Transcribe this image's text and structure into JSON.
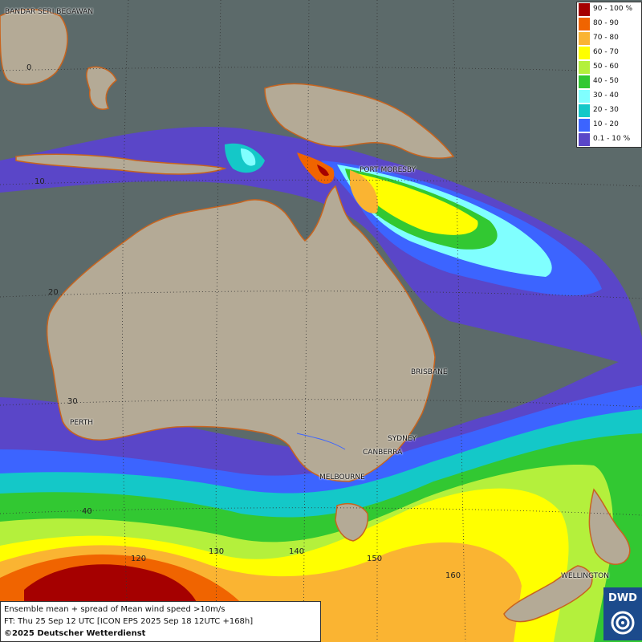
{
  "map": {
    "title": "Ensemble mean + spread of Mean wind speed >10m/s",
    "forecast_line": "FT: Thu 25 Sep 12 UTC [ICON EPS 2025 Sep 18 12UTC +168h]",
    "copyright": "©2025 Deutscher Wetterdienst",
    "legend": [
      {
        "label": "90 - 100 %",
        "color": "#a50000"
      },
      {
        "label": "80 - 90",
        "color": "#f06400"
      },
      {
        "label": "70 - 80",
        "color": "#fab432"
      },
      {
        "label": "60 - 70",
        "color": "#ffff00"
      },
      {
        "label": "50 - 60",
        "color": "#b4f03c"
      },
      {
        "label": "40 - 50",
        "color": "#32c832"
      },
      {
        "label": "30 - 40",
        "color": "#80ffff"
      },
      {
        "label": "20 - 30",
        "color": "#14c8c8"
      },
      {
        "label": "10 - 20",
        "color": "#3c64ff"
      },
      {
        "label": "0.1 - 10 %",
        "color": "#5a46c8"
      }
    ],
    "cities": [
      {
        "name": "BANDAR SERI BEGAWAN"
      },
      {
        "name": "PORT MORESBY"
      },
      {
        "name": "BRISBANE"
      },
      {
        "name": "PERTH"
      },
      {
        "name": "SYDNEY"
      },
      {
        "name": "CANBERRA"
      },
      {
        "name": "MELBOURNE"
      },
      {
        "name": "WELLINGTON"
      }
    ],
    "grid_labels": {
      "lat": [
        "0",
        "10",
        "20",
        "30",
        "40"
      ],
      "lon": [
        "120",
        "130",
        "140",
        "150",
        "160"
      ]
    },
    "logo_text": "DWD",
    "colors": {
      "ocean": "#5c6a6a",
      "land": "#b4aa96",
      "coast": "#c8641e"
    }
  }
}
